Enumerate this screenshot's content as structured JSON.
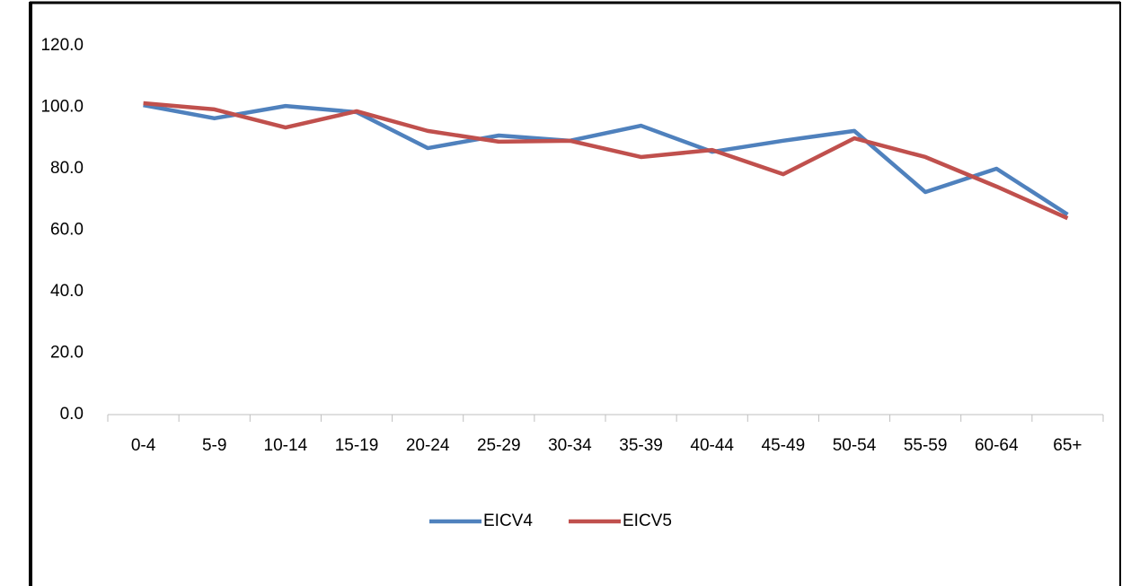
{
  "chart_data": {
    "type": "line",
    "categories": [
      "0-4",
      "5-9",
      "10-14",
      "15-19",
      "20-24",
      "25-29",
      "30-34",
      "35-39",
      "40-44",
      "45-49",
      "50-54",
      "55-59",
      "60-64",
      "65+"
    ],
    "series": [
      {
        "name": "EICV4",
        "color": "#4f81bd",
        "values": [
          100.7,
          96.4,
          100.4,
          98.4,
          86.7,
          90.8,
          89.1,
          94.0,
          85.5,
          89.1,
          92.3,
          72.4,
          80.0,
          65.1
        ]
      },
      {
        "name": "EICV5",
        "color": "#c0504d",
        "values": [
          101.3,
          99.3,
          93.4,
          98.7,
          92.3,
          88.8,
          89.1,
          83.8,
          86.1,
          78.2,
          89.9,
          83.8,
          74.2,
          63.9
        ]
      }
    ],
    "ylim": [
      0,
      120
    ],
    "yticks": [
      {
        "value": 0,
        "label": "0.0"
      },
      {
        "value": 20,
        "label": "20.0"
      },
      {
        "value": 40,
        "label": "40.0"
      },
      {
        "value": 60,
        "label": "60.0"
      },
      {
        "value": 80,
        "label": "80.0"
      },
      {
        "value": 100,
        "label": "100.0"
      },
      {
        "value": 120,
        "label": "120.0"
      }
    ],
    "legend": "bottom"
  }
}
